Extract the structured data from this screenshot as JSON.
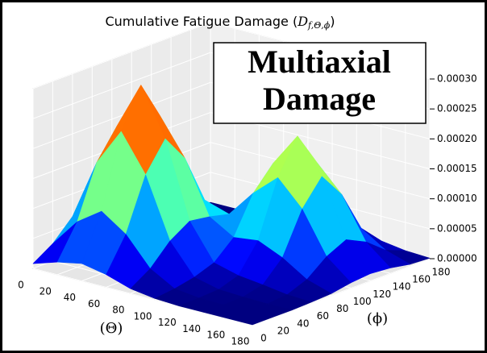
{
  "chart_data": {
    "type": "surface3d",
    "title": [
      "Cumulative Fatigue Damage (",
      "D",
      "f,Θ,ϕ",
      ")"
    ],
    "annotation": [
      "Multiaxial",
      "Damage"
    ],
    "xlabel": "(Θ)",
    "ylabel": "(ϕ)",
    "x": [
      0,
      20,
      40,
      60,
      80,
      100,
      120,
      140,
      160,
      180
    ],
    "y": [
      0,
      20,
      40,
      60,
      80,
      100,
      120,
      140,
      160,
      180
    ],
    "z": [
      [
        8e-06,
        2.9e-05,
        6.2e-05,
        8.1e-05,
        6.2e-05,
        2.9e-05,
        8e-06,
        1e-06,
        0,
        0
      ],
      [
        2.1e-05,
        7.6e-05,
        0.000163,
        0.00021,
        0.000163,
        7.6e-05,
        2.1e-05,
        4e-06,
        0,
        0
      ],
      [
        2.9e-05,
        0.000104,
        0.000225,
        0.00029,
        0.000225,
        0.000105,
        3e-05,
        6e-06,
        1e-06,
        0
      ],
      [
        2.1e-05,
        7.6e-05,
        0.000163,
        0.000211,
        0.000166,
        8.4e-05,
        3.3e-05,
        1.2e-05,
        4e-06,
        1e-06
      ],
      [
        8e-06,
        2.9e-05,
        6.3e-05,
        8.4e-05,
        7.9e-05,
        7.1e-05,
        6.6e-05,
        4.4e-05,
        1.6e-05,
        3e-06
      ],
      [
        2e-06,
        6e-06,
        1.3e-05,
        2.5e-05,
        5.5e-05,
        0.000117,
        0.000154,
        0.000111,
        4.2e-05,
        9e-06
      ],
      [
        0,
        1e-06,
        3e-06,
        1.4e-05,
        6e-05,
        0.000153,
        0.00021,
        0.000153,
        5.8e-05,
        1.2e-05
      ],
      [
        0,
        0,
        1e-06,
        9e-06,
        4.2e-05,
        0.000111,
        0.000153,
        0.000111,
        4.2e-05,
        9e-06
      ],
      [
        0,
        0,
        0,
        3e-06,
        1.6e-05,
        4.2e-05,
        5.8e-05,
        4.2e-05,
        1.6e-05,
        3e-06
      ],
      [
        0,
        0,
        0,
        1e-06,
        3e-06,
        9e-06,
        1.2e-05,
        9e-06,
        3e-06,
        1e-06
      ]
    ],
    "colormap": "jet",
    "xlim": [
      0,
      180
    ],
    "ylim": [
      0,
      180
    ],
    "zlim": [
      0,
      0.0003
    ],
    "xticks": [
      0,
      20,
      40,
      60,
      80,
      100,
      120,
      140,
      160,
      180
    ],
    "yticks": [
      0,
      20,
      40,
      60,
      80,
      100,
      120,
      140,
      160,
      180
    ],
    "zticks": [
      {
        "value": 0,
        "label": "0.00000"
      },
      {
        "value": 5e-05,
        "label": "0.00005"
      },
      {
        "value": 0.0001,
        "label": "0.00010"
      },
      {
        "value": 0.00015,
        "label": "0.00015"
      },
      {
        "value": 0.0002,
        "label": "0.00020"
      },
      {
        "value": 0.00025,
        "label": "0.00025"
      },
      {
        "value": 0.0003,
        "label": "0.00030"
      }
    ],
    "grid": true
  }
}
